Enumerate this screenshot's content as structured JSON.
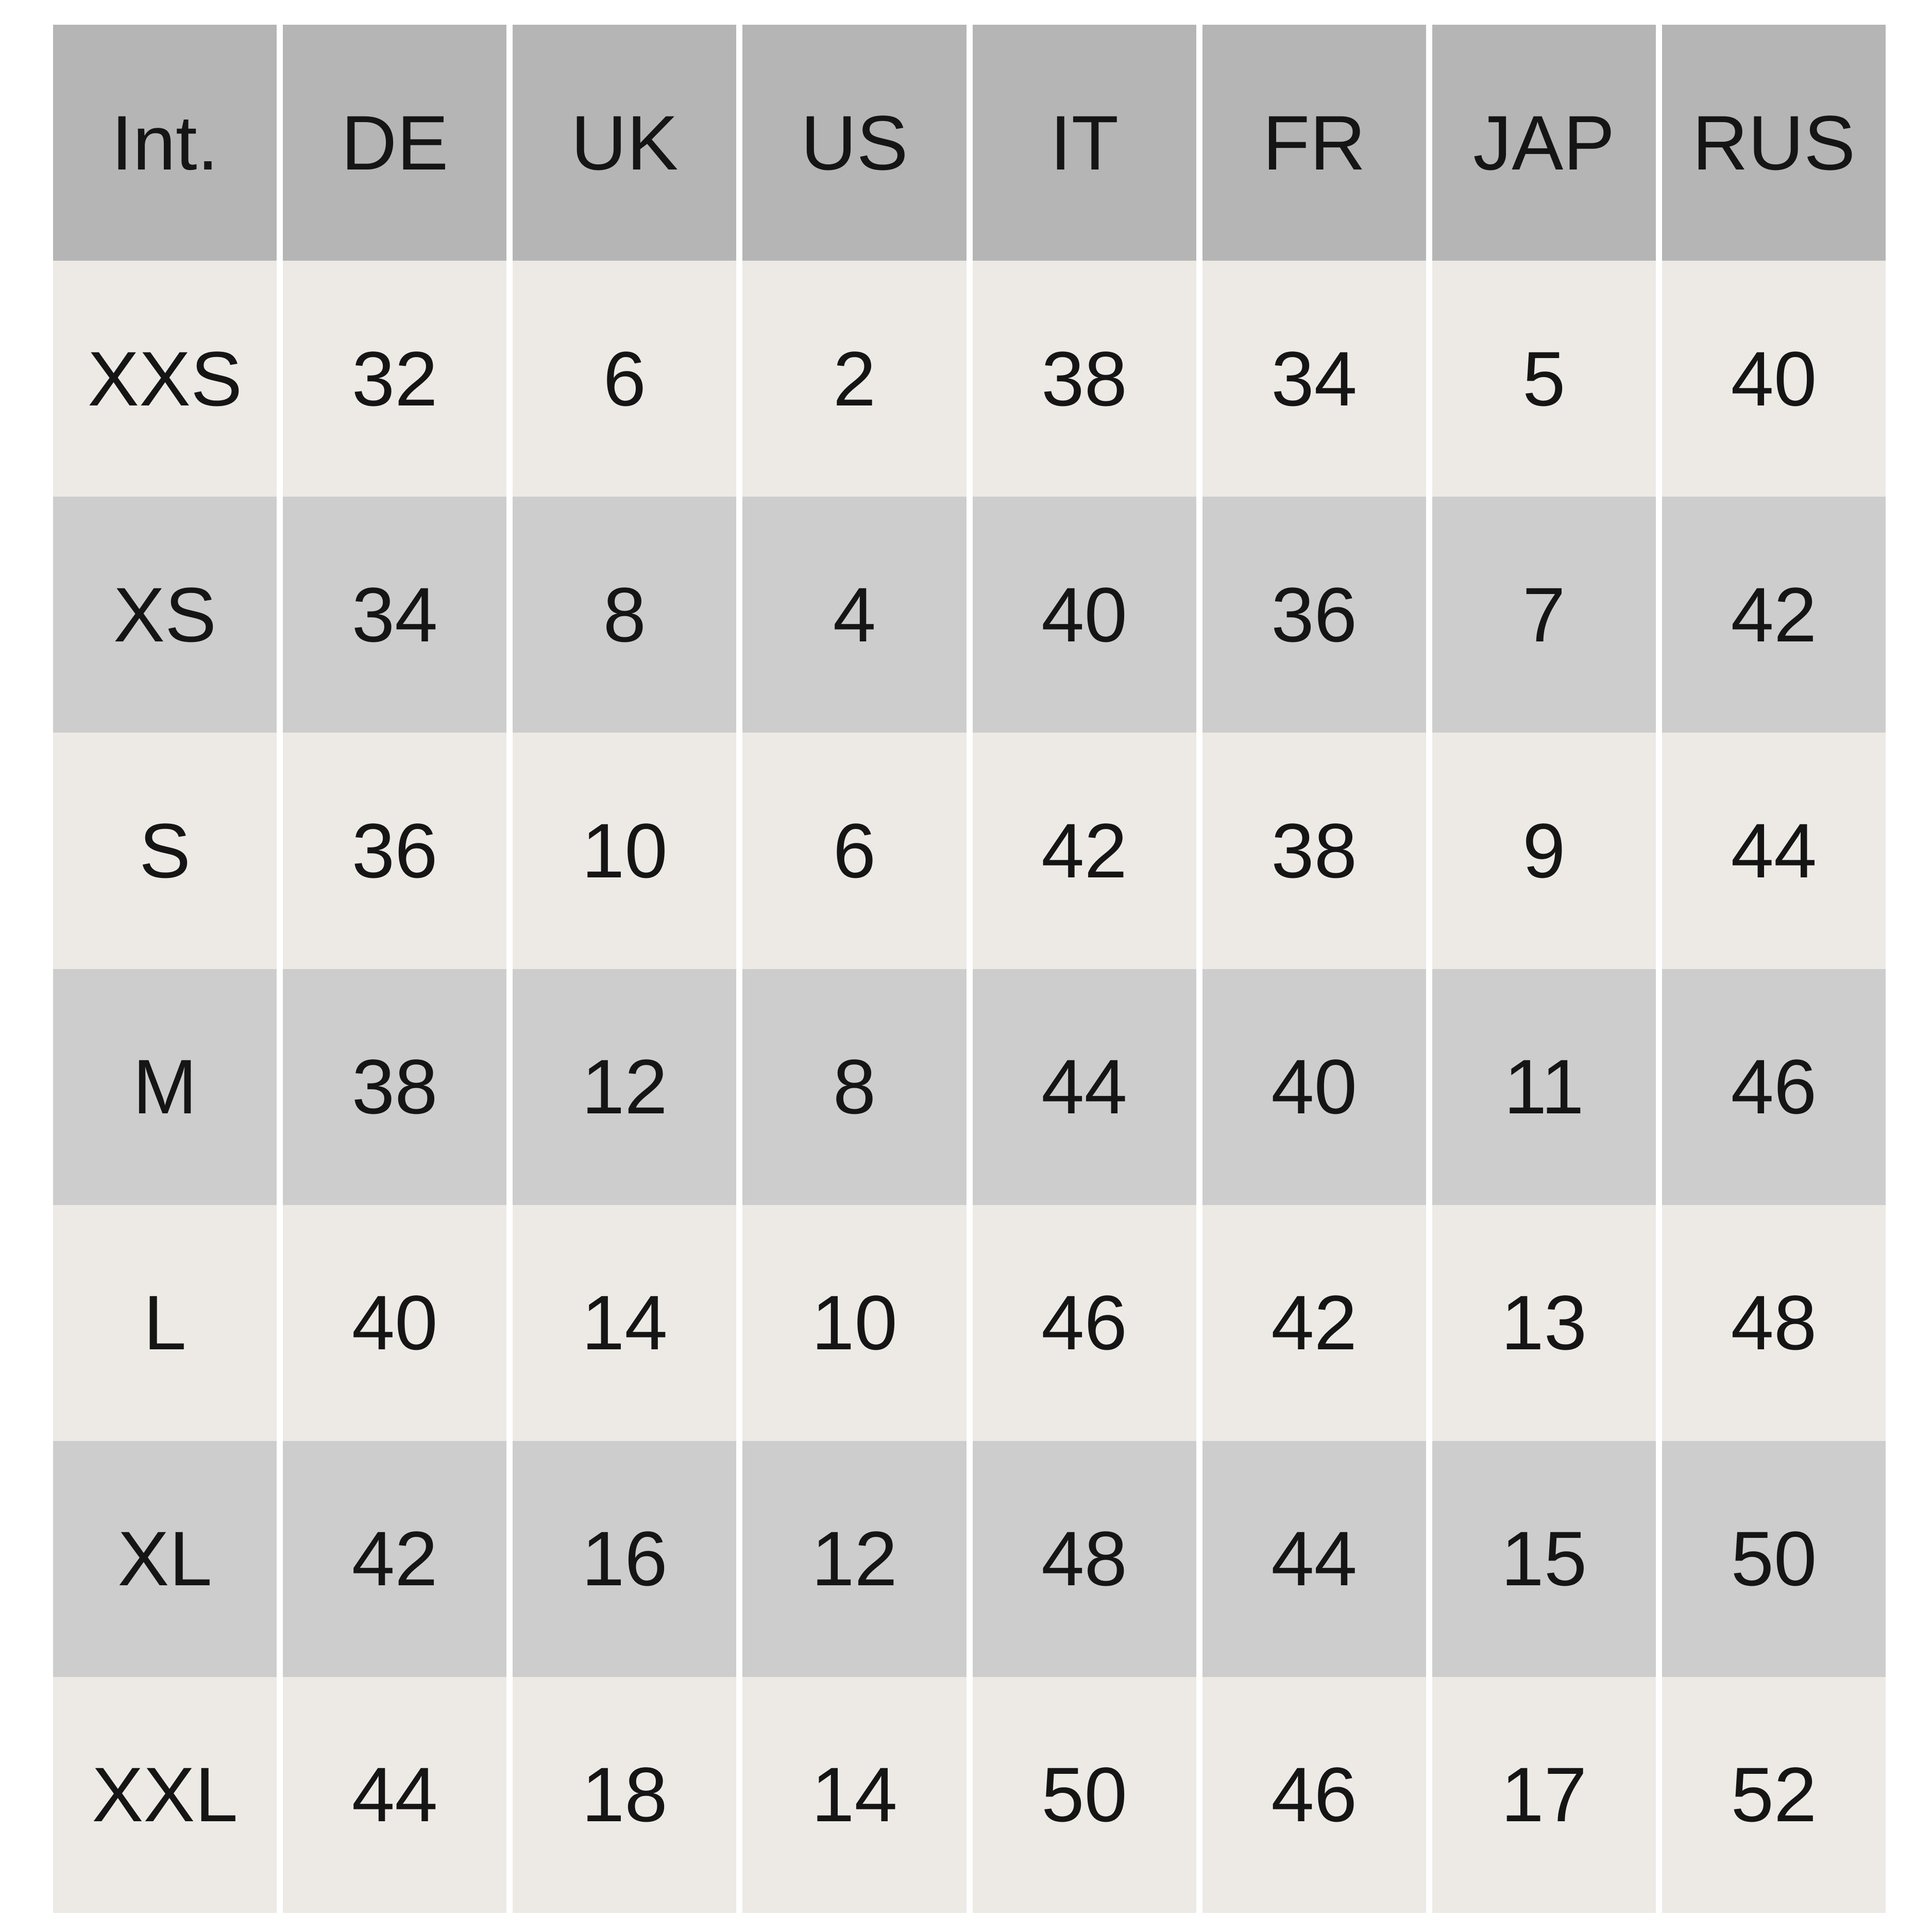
{
  "table": {
    "header": [
      "Int.",
      "DE",
      "UK",
      "US",
      "IT",
      "FR",
      "JAP",
      "RUS"
    ],
    "rows": [
      [
        "XXS",
        "32",
        "6",
        "2",
        "38",
        "34",
        "5",
        "40"
      ],
      [
        "XS",
        "34",
        "8",
        "4",
        "40",
        "36",
        "7",
        "42"
      ],
      [
        "S",
        "36",
        "10",
        "6",
        "42",
        "38",
        "9",
        "44"
      ],
      [
        "M",
        "38",
        "12",
        "8",
        "44",
        "40",
        "11",
        "46"
      ],
      [
        "L",
        "40",
        "14",
        "10",
        "46",
        "42",
        "13",
        "48"
      ],
      [
        "XL",
        "42",
        "16",
        "12",
        "48",
        "44",
        "15",
        "50"
      ],
      [
        "XXL",
        "44",
        "18",
        "14",
        "50",
        "46",
        "17",
        "52"
      ]
    ]
  }
}
